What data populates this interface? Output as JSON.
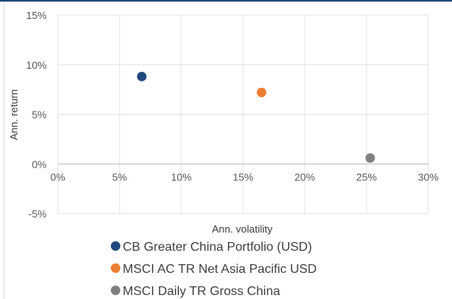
{
  "chart_data": {
    "type": "scatter",
    "xlabel": "Ann. volatility",
    "ylabel": "Ann. return",
    "xlim": [
      0,
      30
    ],
    "ylim": [
      -5,
      15
    ],
    "x_ticks": [
      0,
      5,
      10,
      15,
      20,
      25,
      30
    ],
    "y_ticks": [
      -5,
      0,
      5,
      10,
      15
    ],
    "x_tick_labels": [
      "0%",
      "5%",
      "10%",
      "15%",
      "20%",
      "25%",
      "30%"
    ],
    "y_tick_labels": [
      "-5%",
      "0%",
      "5%",
      "10%",
      "15%"
    ],
    "grid": true,
    "legend_position": "bottom",
    "series": [
      {
        "name": "CB Greater China Portfolio (USD)",
        "x": 6.8,
        "y": 8.8,
        "color": "#1f497d"
      },
      {
        "name": "MSCI AC TR Net Asia Pacific USD",
        "x": 16.5,
        "y": 7.2,
        "color": "#ed7d31"
      },
      {
        "name": "MSCI Daily TR Gross China",
        "x": 25.3,
        "y": 0.6,
        "color": "#7f7f7f"
      }
    ]
  }
}
